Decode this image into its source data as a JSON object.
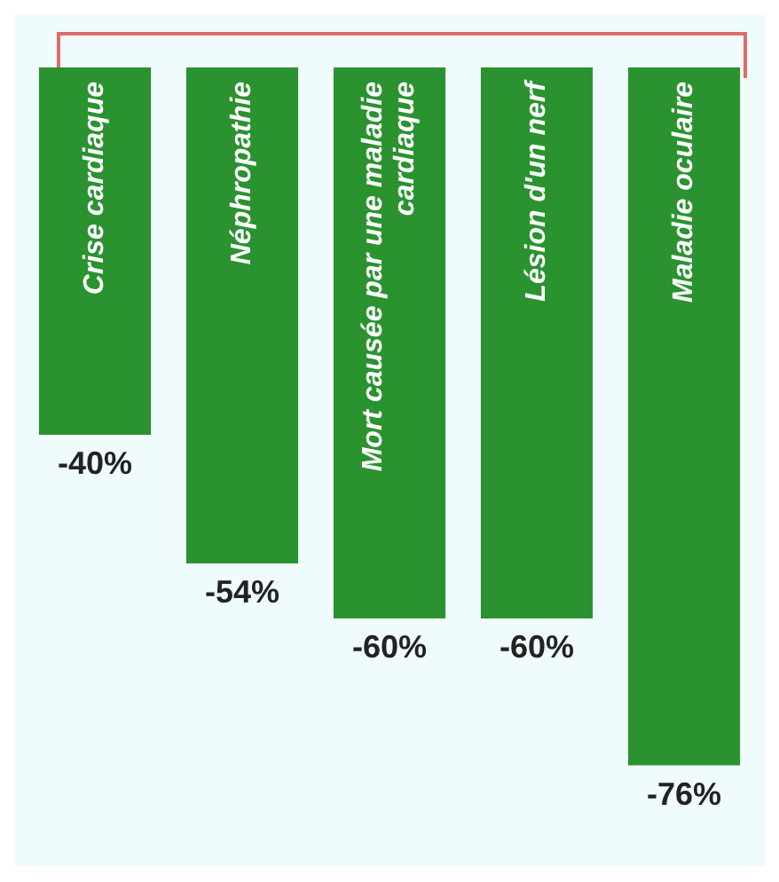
{
  "chart_data": {
    "type": "bar",
    "categories": [
      "Crise cardiaque",
      "Néphropathie",
      "Mort causée par une maladie cardiaque",
      "Lésion d'un nerf",
      "Maladie oculaire"
    ],
    "values": [
      -40,
      -54,
      -60,
      -60,
      -76
    ],
    "value_labels": [
      "-40%",
      "-54%",
      "-60%",
      "-60%",
      "-76%"
    ],
    "color": "#2b9230",
    "legend": false
  }
}
